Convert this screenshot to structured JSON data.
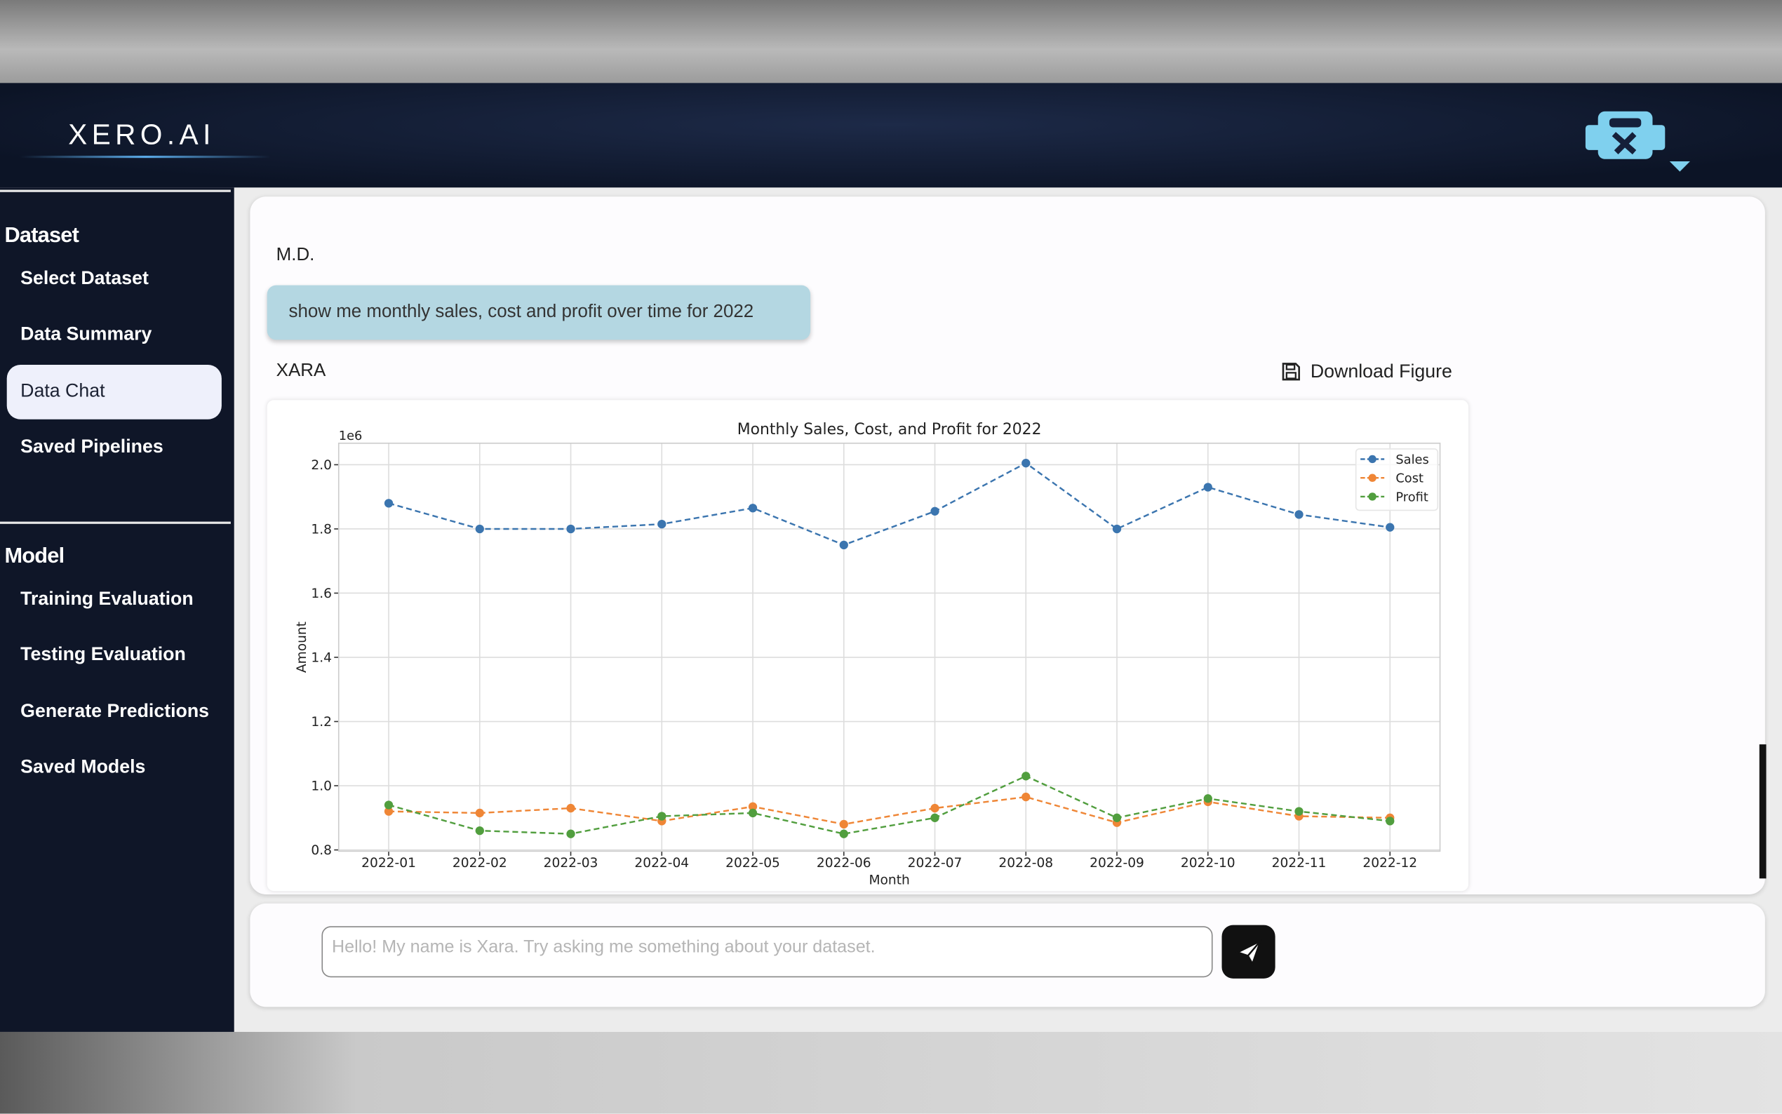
{
  "header": {
    "logo": "XERO.AI"
  },
  "sidebar": {
    "sections": [
      {
        "title": "Dataset",
        "items": [
          "Select Dataset",
          "Data Summary",
          "Data Chat",
          "Saved Pipelines"
        ]
      },
      {
        "title": "Model",
        "items": [
          "Training Evaluation",
          "Testing Evaluation",
          "Generate Predictions",
          "Saved Models"
        ]
      }
    ]
  },
  "chat": {
    "user": "M.D.",
    "message": "show me monthly sales, cost and profit over time for 2022",
    "assistant": "XARA",
    "download": "Download Figure"
  },
  "input": {
    "placeholder": "Hello! My name is Xara. Try asking me something about your dataset."
  },
  "chart_data": {
    "type": "line",
    "title": "Monthly Sales, Cost, and Profit for 2022",
    "offset_label": "1e6",
    "xlabel": "Month",
    "ylabel": "Amount",
    "categories": [
      "2022-01",
      "2022-02",
      "2022-03",
      "2022-04",
      "2022-05",
      "2022-06",
      "2022-07",
      "2022-08",
      "2022-09",
      "2022-10",
      "2022-11",
      "2022-12"
    ],
    "series": [
      {
        "name": "Sales",
        "color": "#3b75af",
        "values": [
          1.88,
          1.8,
          1.8,
          1.815,
          1.865,
          1.75,
          1.855,
          2.005,
          1.8,
          1.93,
          1.845,
          1.805
        ]
      },
      {
        "name": "Cost",
        "color": "#ef8636",
        "values": [
          0.92,
          0.915,
          0.93,
          0.89,
          0.935,
          0.88,
          0.93,
          0.965,
          0.885,
          0.95,
          0.905,
          0.9
        ]
      },
      {
        "name": "Profit",
        "color": "#519e3e",
        "values": [
          0.94,
          0.86,
          0.85,
          0.905,
          0.915,
          0.85,
          0.9,
          1.03,
          0.9,
          0.96,
          0.92,
          0.89
        ]
      }
    ],
    "ylim": [
      0.796,
      2.067
    ],
    "yticks": [
      0.8,
      {
        "value": 1,
        "label": "1.0"
      },
      1.2,
      1.4,
      1.6,
      1.8,
      {
        "value": 2,
        "label": "2.0"
      }
    ],
    "grid": true,
    "legend": "upper right",
    "marker": "circle",
    "linestyle": "dashed"
  }
}
